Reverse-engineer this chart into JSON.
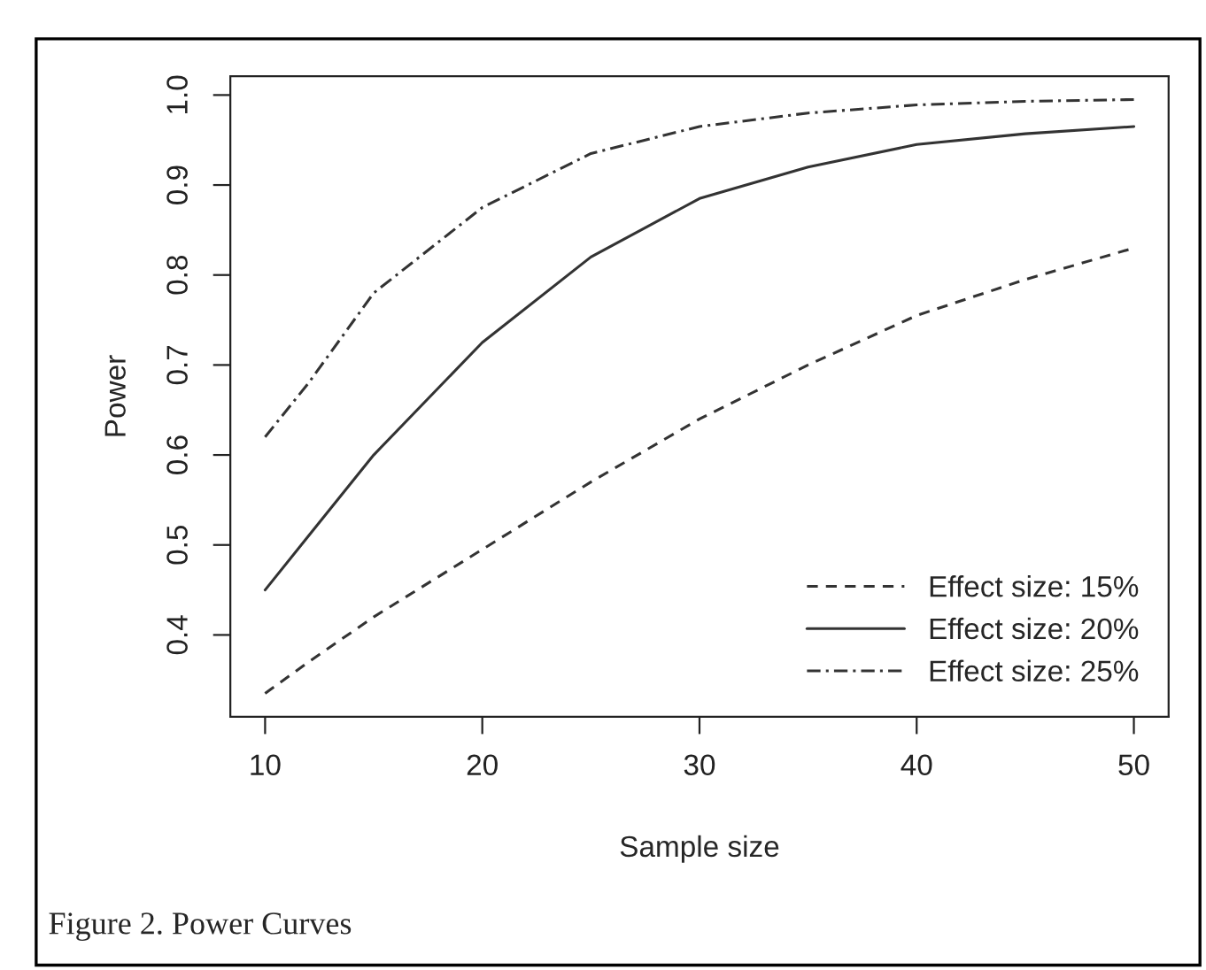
{
  "chart_data": {
    "type": "line",
    "xlabel": "Sample size",
    "ylabel": "Power",
    "x": [
      10,
      12,
      15,
      20,
      25,
      30,
      35,
      40,
      45,
      50
    ],
    "series": [
      {
        "name": "Effect size: 15%",
        "color": "#333333",
        "line_style": "dashed",
        "values": [
          0.335,
          0.37,
          0.42,
          0.495,
          0.57,
          0.64,
          0.7,
          0.755,
          0.795,
          0.83
        ]
      },
      {
        "name": "Effect size: 20%",
        "color": "#333333",
        "line_style": "solid",
        "values": [
          0.45,
          0.51,
          0.6,
          0.725,
          0.82,
          0.885,
          0.92,
          0.945,
          0.957,
          0.965
        ]
      },
      {
        "name": "Effect size: 25%",
        "color": "#333333",
        "line_style": "dashdot",
        "values": [
          0.62,
          0.68,
          0.78,
          0.875,
          0.935,
          0.965,
          0.98,
          0.989,
          0.993,
          0.995
        ]
      }
    ],
    "xlim": [
      8.4,
      51.6
    ],
    "ylim": [
      0.309,
      1.021
    ],
    "xticks": [
      10,
      20,
      30,
      40,
      50
    ],
    "yticks": [
      0.4,
      0.5,
      0.6,
      0.7,
      0.8,
      0.9,
      {
        "value": 1,
        "label": "1.0"
      }
    ],
    "grid": false,
    "legend": "bottom right",
    "marker": "none",
    "annotations": [
      "Figure 2. Power Curves"
    ]
  }
}
